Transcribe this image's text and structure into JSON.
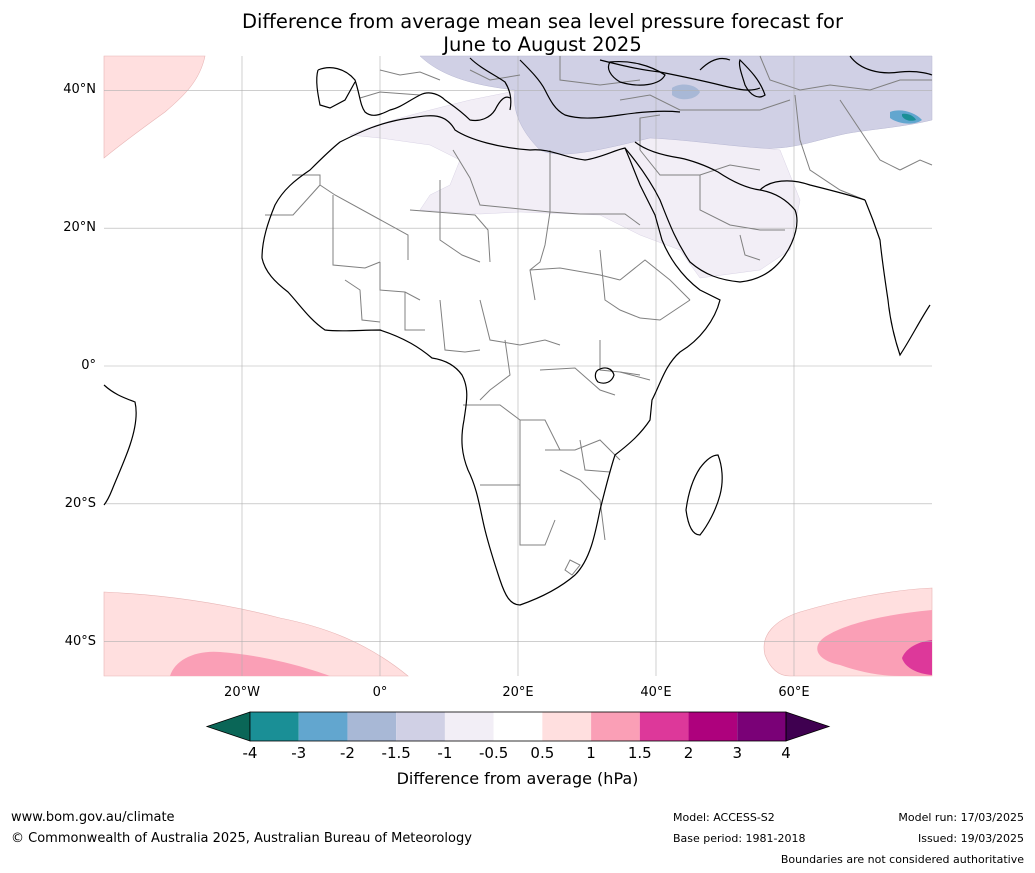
{
  "title_line1": "Difference from average mean sea level pressure forecast for",
  "title_line2": "June to August 2025",
  "map": {
    "lon_range": [
      -40,
      80
    ],
    "lat_range": [
      -45,
      45
    ],
    "lat_ticks": [
      {
        "value": 40,
        "label": "40°N"
      },
      {
        "value": 20,
        "label": "20°N"
      },
      {
        "value": 0,
        "label": "0°"
      },
      {
        "value": -20,
        "label": "20°S"
      },
      {
        "value": -40,
        "label": "40°S"
      }
    ],
    "lon_ticks": [
      {
        "value": -20,
        "label": "20°W"
      },
      {
        "value": 0,
        "label": "0°"
      },
      {
        "value": 20,
        "label": "20°E"
      },
      {
        "value": 40,
        "label": "40°E"
      },
      {
        "value": 60,
        "label": "60°E"
      }
    ],
    "gridlines": true
  },
  "colorbar": {
    "boundaries": [
      "-4",
      "-3",
      "-2",
      "-1.5",
      "-1",
      "-0.5",
      "0.5",
      "1",
      "1.5",
      "2",
      "3",
      "4"
    ],
    "under_color": "#0a6657",
    "over_color": "#3f0050",
    "colors": [
      "#1a8f96",
      "#62a6cf",
      "#a8b8d6",
      "#d0d0e5",
      "#f2eef6",
      "#ffffff",
      "#ffdfdf",
      "#fa9fb6",
      "#dd389a",
      "#ae017d",
      "#7a0177"
    ],
    "label": "Difference from average (hPa)"
  },
  "footer": {
    "website": "www.bom.gov.au/climate",
    "copyright": "© Commonwealth of Australia 2025, Australian Bureau of Meteorology",
    "model": "Model: ACCESS-S2",
    "base_period": "Base period: 1981-2018",
    "model_run": "Model run: 17/03/2025",
    "issued": "Issued: 19/03/2025",
    "disclaimer": "Boundaries are not considered authoritative"
  }
}
